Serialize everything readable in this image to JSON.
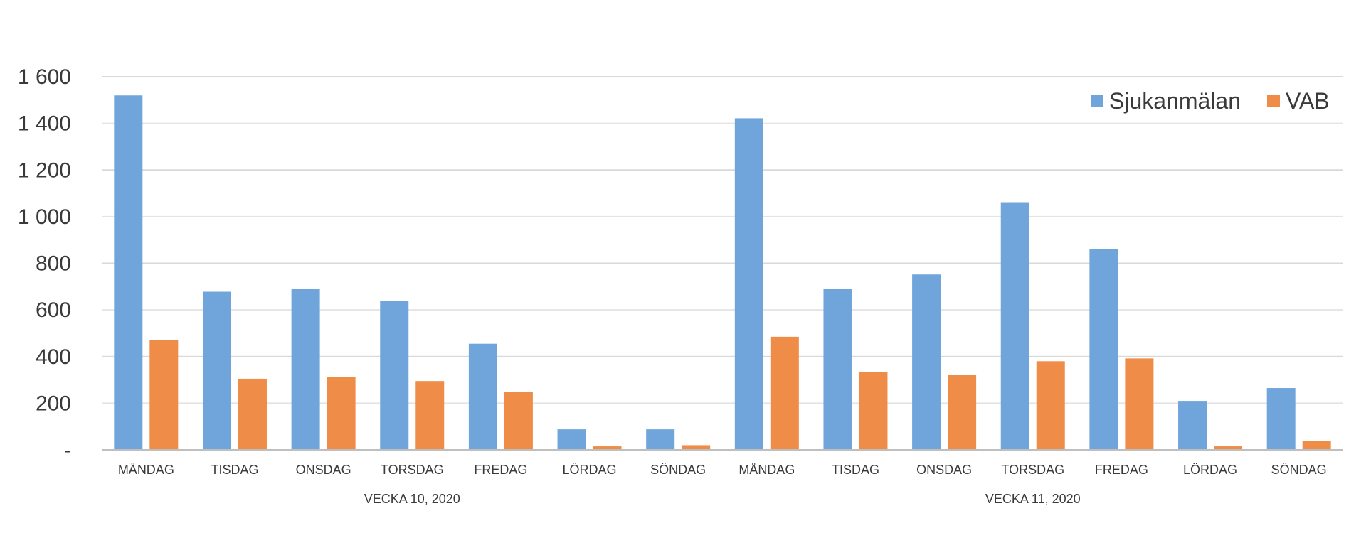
{
  "chart_data": {
    "type": "bar",
    "categories": [
      "MÅNDAG",
      "TISDAG",
      "ONSDAG",
      "TORSDAG",
      "FREDAG",
      "LÖRDAG",
      "SÖNDAG",
      "MÅNDAG",
      "TISDAG",
      "ONSDAG",
      "TORSDAG",
      "FREDAG",
      "LÖRDAG",
      "SÖNDAG"
    ],
    "groups": [
      {
        "label": "VECKA 10, 2020",
        "count": 7
      },
      {
        "label": "VECKA 11, 2020",
        "count": 7
      }
    ],
    "series": [
      {
        "name": "Sjukanmälan",
        "color": "#6fa5da",
        "values": [
          1520,
          678,
          690,
          638,
          455,
          88,
          88,
          1422,
          690,
          752,
          1062,
          860,
          210,
          265
        ]
      },
      {
        "name": "VAB",
        "color": "#ef8c48",
        "values": [
          472,
          305,
          312,
          295,
          248,
          15,
          20,
          485,
          335,
          323,
          380,
          392,
          15,
          38
        ]
      }
    ],
    "ylim": [
      0,
      1600
    ],
    "yticks": [
      0,
      200,
      400,
      600,
      800,
      1000,
      1200,
      1400,
      1600
    ],
    "ytick_labels": [
      "-",
      "200",
      "400",
      "600",
      "800",
      "1 000",
      "1 200",
      "1 400",
      "1 600"
    ],
    "grid": true,
    "legend_position": "top-right"
  }
}
